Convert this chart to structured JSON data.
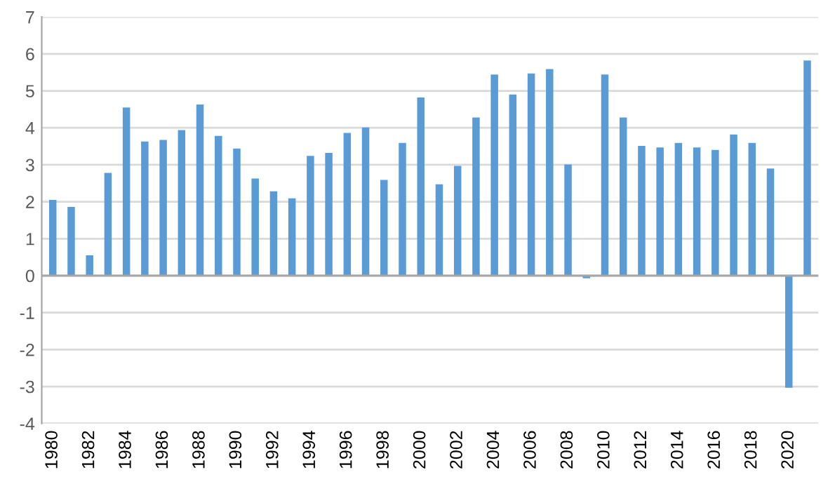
{
  "chart_data": {
    "type": "bar",
    "color": "#5b9bd5",
    "categories": [
      "1980",
      null,
      "1982",
      null,
      "1984",
      null,
      "1986",
      null,
      "1988",
      null,
      "1990",
      null,
      "1992",
      null,
      "1994",
      null,
      "1996",
      null,
      "1998",
      null,
      "2000",
      null,
      "2002",
      null,
      "2004",
      null,
      "2006",
      null,
      "2008",
      null,
      "2010",
      null,
      "2012",
      null,
      "2014",
      null,
      "2016",
      null,
      "2018",
      null,
      "2020",
      null
    ],
    "values": [
      2.05,
      1.86,
      0.55,
      2.78,
      4.55,
      3.63,
      3.67,
      3.94,
      4.63,
      3.78,
      3.44,
      2.63,
      2.28,
      2.09,
      3.24,
      3.32,
      3.86,
      4.01,
      2.59,
      3.59,
      4.82,
      2.47,
      2.97,
      4.28,
      5.44,
      4.9,
      5.47,
      5.59,
      3.01,
      -0.07,
      5.44,
      4.28,
      3.51,
      3.47,
      3.59,
      3.47,
      3.4,
      3.82,
      3.59,
      2.9,
      -3.03,
      5.82
    ],
    "ylim": [
      -4,
      7
    ],
    "yticks": [
      -4,
      -3,
      -2,
      -1,
      0,
      1,
      2,
      3,
      4,
      5,
      6,
      7
    ],
    "grid": "y"
  }
}
